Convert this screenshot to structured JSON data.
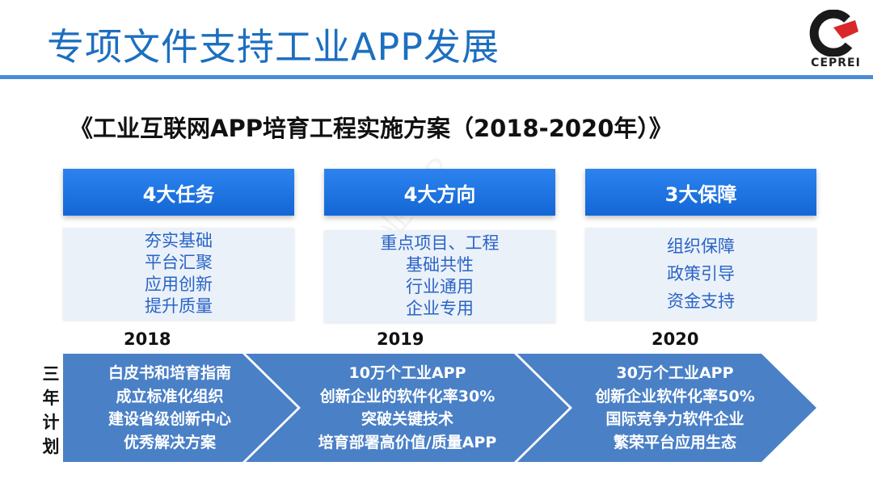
{
  "slide": {
    "title": "专项文件支持工业APP发展",
    "subtitle": "《工业互联网APP培育工程实施方案（2018-2020年）》",
    "logo_text": "CEPREI"
  },
  "columns": [
    {
      "heading": "4大任务",
      "items": [
        "夯实基础",
        "平台汇聚",
        "应用创新",
        "提升质量"
      ]
    },
    {
      "heading": "4大方向",
      "items": [
        "重点项目、工程",
        "基础共性",
        "行业通用",
        "企业专用"
      ]
    },
    {
      "heading": "3大保障",
      "items": [
        "组织保障",
        "政策引导",
        "资金支持"
      ]
    }
  ],
  "timeline": {
    "label": [
      "三",
      "年",
      "计",
      "划"
    ],
    "phases": [
      {
        "year": "2018",
        "lines": [
          "白皮书和培育指南",
          "成立标准化组织",
          "建设省级创新中心",
          "优秀解决方案"
        ]
      },
      {
        "year": "2019",
        "lines": [
          "10万个工业APP",
          "创新企业的软件化率30%",
          "突破关键技术",
          "培育部署高价值/质量APP"
        ]
      },
      {
        "year": "2020",
        "lines": [
          "30万个工业APP",
          "创新企业软件化率50%",
          "国际竞争力软件企业",
          "繁荣平台应用生态"
        ]
      }
    ]
  },
  "colors": {
    "title": "#1d6fc0",
    "rule": "#4b8bd6",
    "heading_bg": "#1a74e0",
    "detail_bg": "#eaf1f9",
    "detail_text": "#2a64c6",
    "arrow": "#4a80c6",
    "logo_red": "#d8282b"
  }
}
